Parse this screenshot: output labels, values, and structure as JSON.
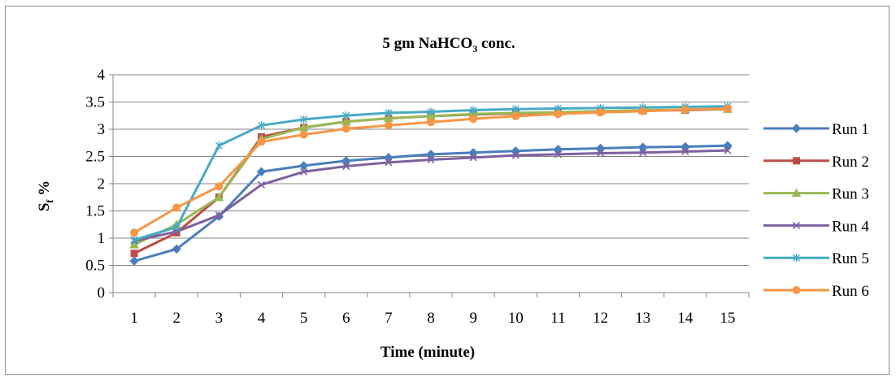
{
  "chart_data": {
    "type": "line",
    "title": "5 gm NaHCO",
    "title_sub": "3",
    "title_tail": " conc.",
    "xlabel": "Time (minute)",
    "ylabel": "S",
    "ylabel_sub": "f",
    "ylabel_tail": " %",
    "x": [
      1,
      2,
      3,
      4,
      5,
      6,
      7,
      8,
      9,
      10,
      11,
      12,
      13,
      14,
      15
    ],
    "x_tick_labels": [
      "1",
      "2",
      "3",
      "4",
      "5",
      "6",
      "7",
      "8",
      "9",
      "10",
      "11",
      "12",
      "13",
      "14",
      "15"
    ],
    "ylim": [
      0,
      4
    ],
    "y_ticks": [
      0,
      0.5,
      1,
      1.5,
      2,
      2.5,
      3,
      3.5,
      4
    ],
    "y_tick_labels": [
      "0",
      "0.5",
      "1",
      "1.5",
      "2",
      "2.5",
      "3",
      "3.5",
      "4"
    ],
    "grid": "horizontal",
    "legend_position": "right",
    "series": [
      {
        "name": "Run 1",
        "color": "#4a7ebb",
        "marker": "diamond",
        "values": [
          0.58,
          0.8,
          1.4,
          2.22,
          2.33,
          2.42,
          2.48,
          2.54,
          2.57,
          2.6,
          2.63,
          2.65,
          2.67,
          2.68,
          2.7
        ]
      },
      {
        "name": "Run 2",
        "color": "#be4b48",
        "marker": "square",
        "values": [
          0.72,
          1.1,
          1.75,
          2.86,
          3.03,
          3.14,
          3.2,
          3.24,
          3.27,
          3.29,
          3.31,
          3.33,
          3.34,
          3.35,
          3.37
        ]
      },
      {
        "name": "Run 3",
        "color": "#98b954",
        "marker": "triangle",
        "values": [
          0.88,
          1.25,
          1.75,
          2.82,
          3.03,
          3.14,
          3.2,
          3.24,
          3.28,
          3.3,
          3.31,
          3.33,
          3.35,
          3.36,
          3.37
        ]
      },
      {
        "name": "Run 4",
        "color": "#7d60a0",
        "marker": "x",
        "values": [
          0.95,
          1.12,
          1.42,
          1.98,
          2.22,
          2.32,
          2.39,
          2.44,
          2.48,
          2.52,
          2.54,
          2.56,
          2.57,
          2.59,
          2.61
        ]
      },
      {
        "name": "Run 5",
        "color": "#46aac5",
        "marker": "star",
        "values": [
          0.97,
          1.2,
          2.7,
          3.07,
          3.18,
          3.25,
          3.3,
          3.32,
          3.35,
          3.37,
          3.38,
          3.39,
          3.4,
          3.41,
          3.42
        ]
      },
      {
        "name": "Run 6",
        "color": "#f79646",
        "marker": "circle",
        "values": [
          1.1,
          1.56,
          1.95,
          2.77,
          2.9,
          3.01,
          3.07,
          3.13,
          3.19,
          3.24,
          3.28,
          3.31,
          3.33,
          3.36,
          3.38
        ]
      }
    ]
  }
}
